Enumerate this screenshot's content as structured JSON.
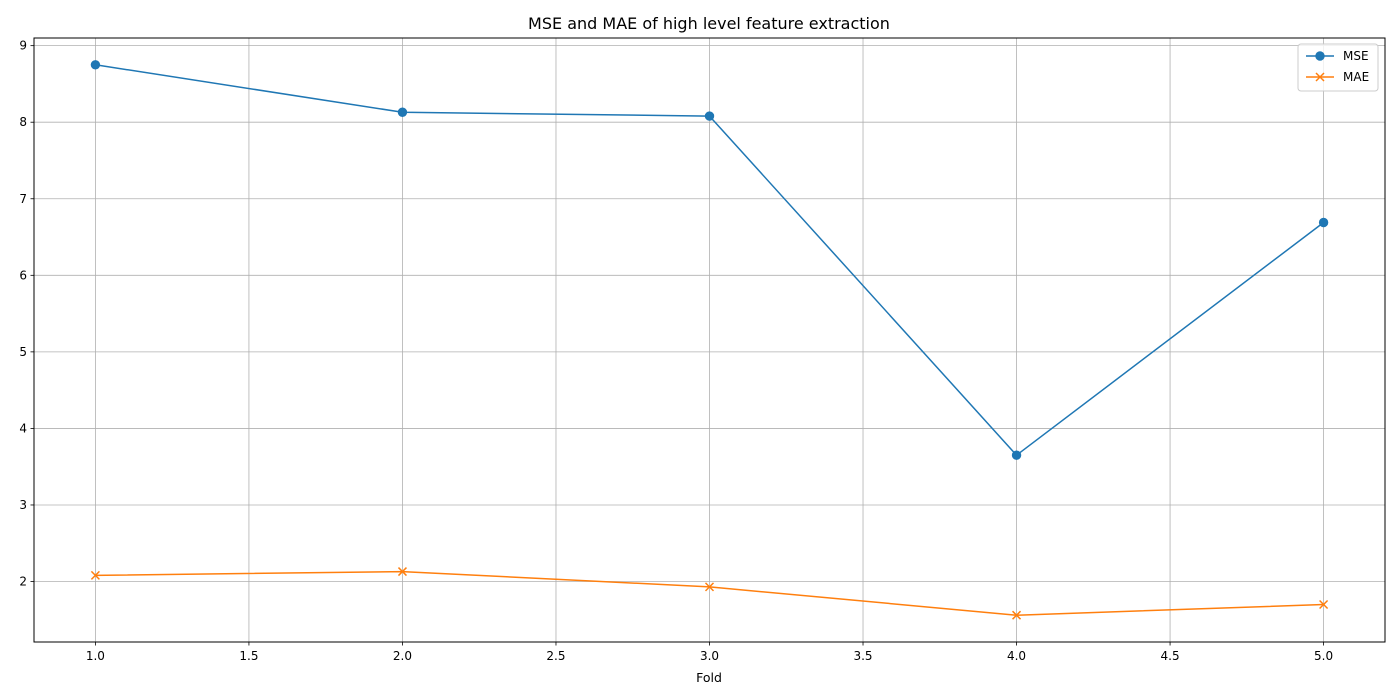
{
  "chart_data": {
    "type": "line",
    "title": "MSE and MAE of high level feature extraction",
    "xlabel": "Fold",
    "ylabel": "",
    "x": [
      1.0,
      2.0,
      3.0,
      4.0,
      5.0
    ],
    "series": [
      {
        "name": "MSE",
        "values": [
          8.75,
          8.13,
          8.08,
          3.65,
          6.69
        ],
        "color": "#1f77b4",
        "marker": "circle"
      },
      {
        "name": "MAE",
        "values": [
          2.08,
          2.13,
          1.93,
          1.56,
          1.7
        ],
        "color": "#ff7f0e",
        "marker": "x"
      }
    ],
    "xlim": [
      0.8,
      5.2
    ],
    "ylim": [
      1.21,
      9.1
    ],
    "xticks": [
      1.0,
      1.5,
      2.0,
      2.5,
      3.0,
      3.5,
      4.0,
      4.5,
      5.0
    ],
    "xtick_labels": [
      "1.0",
      "1.5",
      "2.0",
      "2.5",
      "3.0",
      "3.5",
      "4.0",
      "4.5",
      "5.0"
    ],
    "yticks": [
      2,
      3,
      4,
      5,
      6,
      7,
      8,
      9
    ],
    "ytick_labels": [
      "2",
      "3",
      "4",
      "5",
      "6",
      "7",
      "8",
      "9"
    ],
    "grid": true,
    "legend_position": "top-right"
  }
}
